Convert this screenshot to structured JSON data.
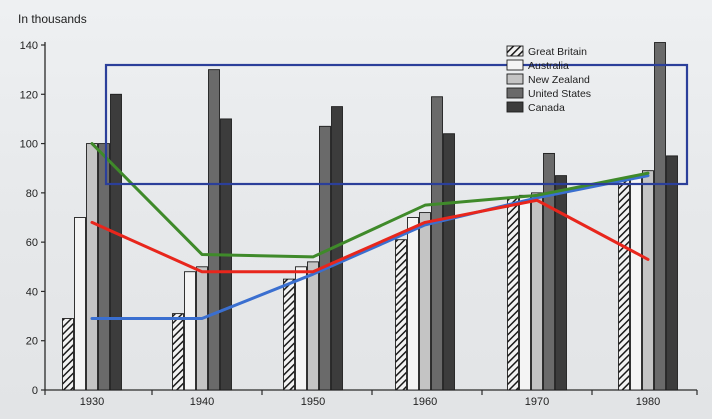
{
  "chart_data": {
    "type": "bar",
    "title": "",
    "unit_label": "In thousands",
    "xlabel": "",
    "ylabel": "",
    "ylim": [
      0,
      140
    ],
    "yticks": [
      0,
      20,
      40,
      60,
      80,
      100,
      120,
      140
    ],
    "categories": [
      "1930",
      "1940",
      "1950",
      "1960",
      "1970",
      "1980"
    ],
    "series": [
      {
        "name": "Great Britain",
        "values": [
          29,
          31,
          45,
          61,
          78,
          85
        ],
        "pattern": "hatched"
      },
      {
        "name": "Australia",
        "values": [
          70,
          48,
          50,
          70,
          79,
          86
        ],
        "color": "#f4f4f4"
      },
      {
        "name": "New Zealand",
        "values": [
          100,
          50,
          52,
          72,
          80,
          89
        ],
        "color": "#c4c4c4"
      },
      {
        "name": "United States",
        "values": [
          100,
          130,
          107,
          119,
          96,
          141
        ],
        "color": "#6a6a6a"
      },
      {
        "name": "Canada",
        "values": [
          120,
          110,
          115,
          104,
          87,
          95
        ],
        "color": "#3c3c3c"
      }
    ],
    "overlay_lines": [
      {
        "color": "#3a6fd0",
        "values": [
          29,
          29,
          47,
          67,
          78,
          87
        ]
      },
      {
        "color": "#e8261c",
        "values": [
          68,
          48,
          48,
          68,
          77,
          53
        ]
      },
      {
        "color": "#3f8a2a",
        "values": [
          100,
          55,
          54,
          75,
          79,
          88
        ]
      }
    ],
    "legend_position": "top-right",
    "grid": false,
    "highlight_box_color": "#2b3f9a"
  }
}
